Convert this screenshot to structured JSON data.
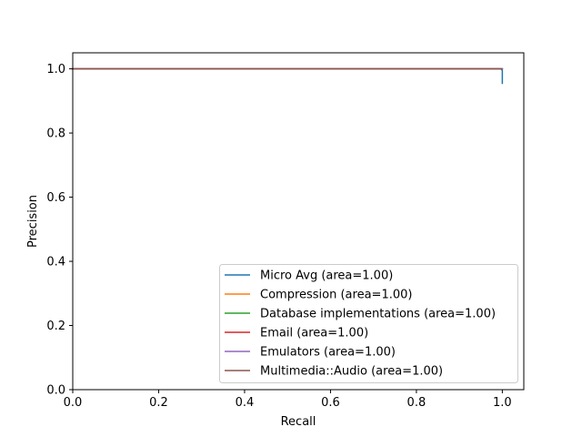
{
  "chart_data": {
    "type": "line",
    "title": "",
    "xlabel": "Recall",
    "ylabel": "Precision",
    "xlim": [
      0.0,
      1.05
    ],
    "ylim": [
      0.0,
      1.05
    ],
    "xticks": [
      "0.0",
      "0.2",
      "0.4",
      "0.6",
      "0.8",
      "1.0"
    ],
    "yticks": [
      "0.0",
      "0.2",
      "0.4",
      "0.6",
      "0.8",
      "1.0"
    ],
    "grid": false,
    "legend_position": "lower-right",
    "series": [
      {
        "name": "Micro Avg (area=1.00)",
        "color": "#1f77b4",
        "x": [
          0.0,
          0.997,
          1.0,
          1.0
        ],
        "y": [
          1.0,
          1.0,
          0.995,
          0.955
        ]
      },
      {
        "name": "Compression (area=1.00)",
        "color": "#ff7f0e",
        "x": [
          0.0,
          1.0
        ],
        "y": [
          1.0,
          1.0
        ]
      },
      {
        "name": "Database implementations (area=1.00)",
        "color": "#2ca02c",
        "x": [
          0.0,
          1.0
        ],
        "y": [
          1.0,
          1.0
        ]
      },
      {
        "name": "Email (area=1.00)",
        "color": "#d62728",
        "x": [
          0.0,
          1.0
        ],
        "y": [
          1.0,
          1.0
        ]
      },
      {
        "name": "Emulators (area=1.00)",
        "color": "#9467bd",
        "x": [
          0.0,
          1.0
        ],
        "y": [
          1.0,
          1.0
        ]
      },
      {
        "name": "Multimedia::Audio (area=1.00)",
        "color": "#8c564b",
        "x": [
          0.0,
          0.998
        ],
        "y": [
          1.0,
          1.0
        ]
      }
    ]
  }
}
